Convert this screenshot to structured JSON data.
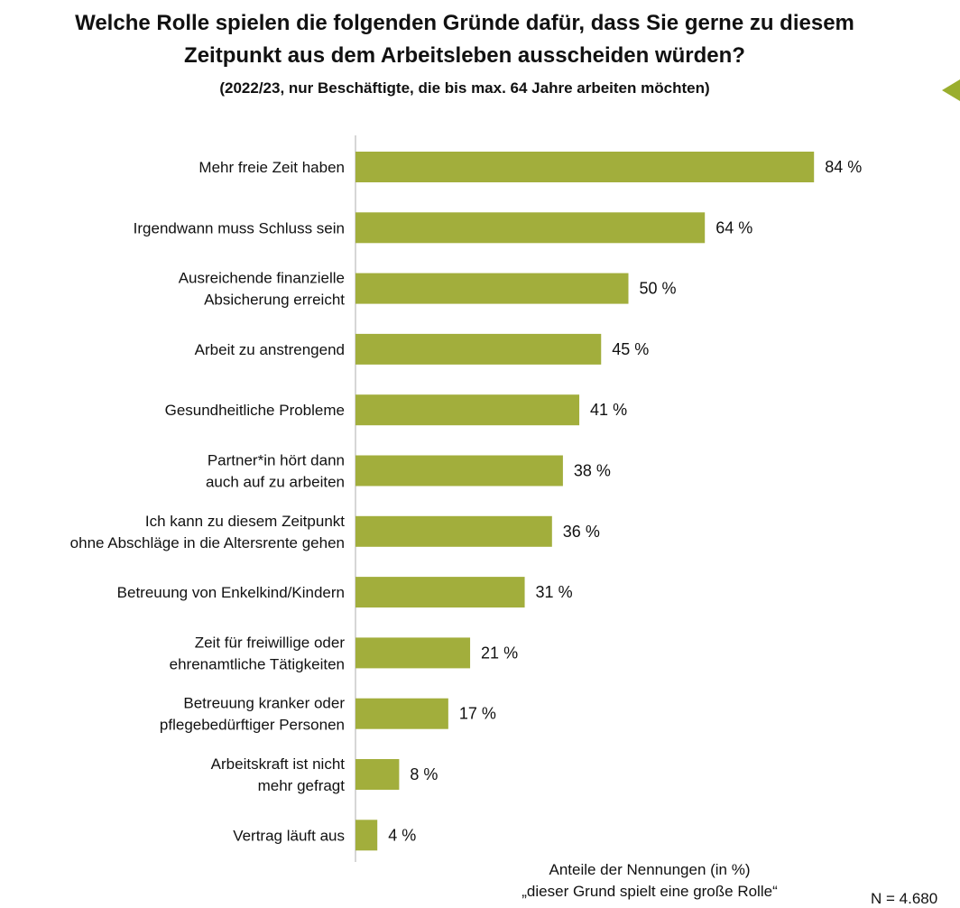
{
  "header": {
    "title_line1": "Welche Rolle spielen die folgenden Gründe dafür, dass Sie gerne zu diesem",
    "title_line2": "Zeitpunkt aus dem Arbeitsleben ausscheiden würden?",
    "subtitle": "(2022/23, nur Beschäftigte, die bis max. 64 Jahre arbeiten möchten)"
  },
  "chart_data": {
    "type": "bar",
    "orientation": "horizontal",
    "categories": [
      [
        "Mehr freie Zeit haben"
      ],
      [
        "Irgendwann muss Schluss sein"
      ],
      [
        "Ausreichende finanzielle",
        "Absicherung erreicht"
      ],
      [
        "Arbeit zu anstrengend"
      ],
      [
        "Gesundheitliche Probleme"
      ],
      [
        "Partner*in hört dann",
        "auch auf zu arbeiten"
      ],
      [
        "Ich kann zu diesem Zeitpunkt",
        "ohne Abschläge in die Altersrente gehen"
      ],
      [
        "Betreuung von Enkelkind/Kindern"
      ],
      [
        "Zeit für freiwillige oder",
        "ehrenamtliche Tätigkeiten"
      ],
      [
        "Betreuung kranker oder",
        "pflegebedürftiger Personen"
      ],
      [
        "Arbeitskraft ist nicht",
        "mehr gefragt"
      ],
      [
        "Vertrag läuft aus"
      ]
    ],
    "values": [
      84,
      64,
      50,
      45,
      41,
      38,
      36,
      31,
      21,
      17,
      8,
      4
    ],
    "value_labels": [
      "84 %",
      "64 %",
      "50 %",
      "45 %",
      "41 %",
      "38 %",
      "36 %",
      "31 %",
      "21 %",
      "17 %",
      "8 %",
      "4 %"
    ],
    "unit": "%",
    "xlim": [
      0,
      100
    ],
    "bar_color": "#a2ae3c",
    "axis_color": "#c8c8c8",
    "xlabel_line1": "Anteile der Nennungen (in %)",
    "xlabel_line2": "„dieser Grund spielt eine große Rolle“",
    "grid": false,
    "legend": "none"
  },
  "footer": {
    "n_label": "N = 4.680"
  },
  "decor": {
    "arrow_icon_color": "#9aae2e"
  }
}
